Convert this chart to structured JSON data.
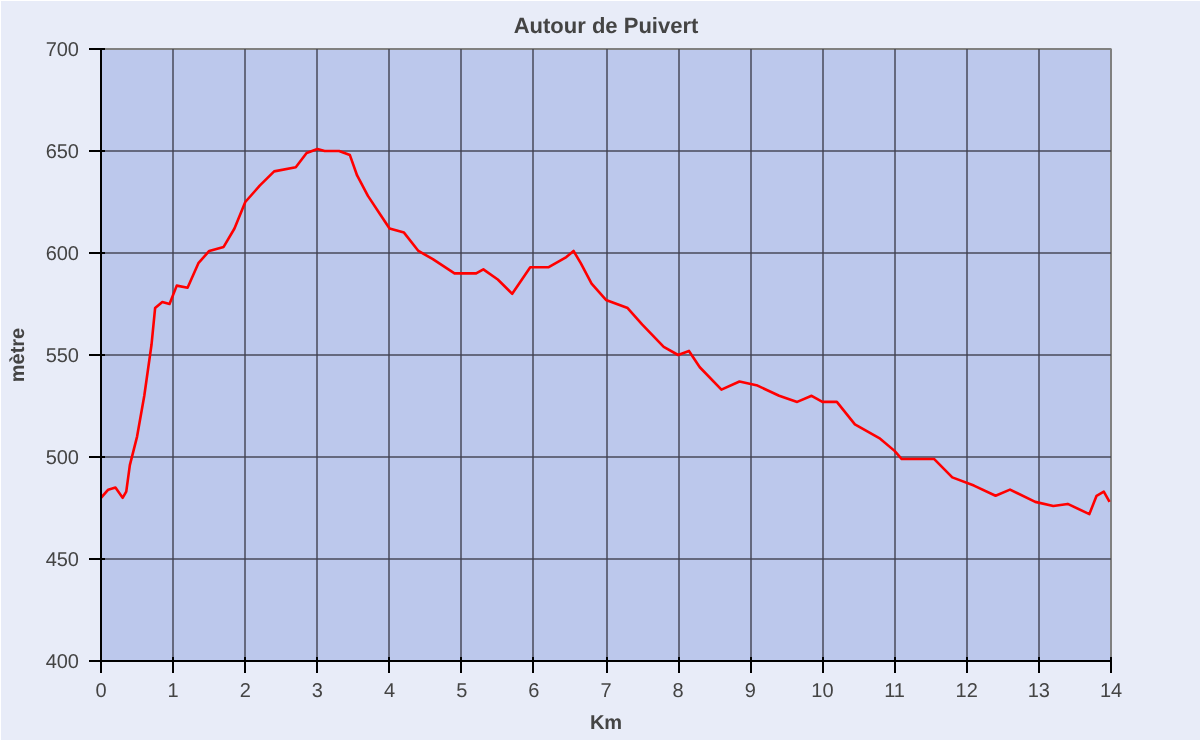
{
  "chart_data": {
    "type": "line",
    "title": "Autour de Puivert",
    "xlabel": "Km",
    "ylabel": "mètre",
    "series": [
      {
        "color": "#ff0000",
        "x": [
          0,
          0.1,
          0.2,
          0.3,
          0.35,
          0.4,
          0.5,
          0.6,
          0.7,
          0.75,
          0.85,
          0.95,
          1.05,
          1.2,
          1.35,
          1.5,
          1.7,
          1.85,
          2.0,
          2.2,
          2.4,
          2.7,
          2.85,
          3.0,
          3.1,
          3.3,
          3.45,
          3.55,
          3.7,
          3.85,
          4.0,
          4.2,
          4.4,
          4.6,
          4.9,
          5.2,
          5.3,
          5.5,
          5.7,
          5.95,
          6.2,
          6.45,
          6.55,
          6.65,
          6.8,
          7.0,
          7.3,
          7.5,
          7.8,
          8.0,
          8.15,
          8.3,
          8.6,
          8.85,
          9.1,
          9.4,
          9.65,
          9.85,
          10.0,
          10.2,
          10.45,
          10.8,
          11.0,
          11.1,
          11.55,
          11.8,
          12.1,
          12.4,
          12.6,
          12.95,
          13.2,
          13.4,
          13.7,
          13.8,
          13.9,
          13.98
        ],
        "values": [
          480,
          484,
          485,
          480,
          483,
          496,
          510,
          530,
          555,
          573,
          576,
          575,
          584,
          583,
          595,
          601,
          603,
          612,
          625,
          633,
          640,
          642,
          649,
          651,
          650,
          650,
          648,
          638,
          628,
          620,
          612,
          610,
          601,
          597,
          590,
          590,
          592,
          587,
          580,
          593,
          593,
          598,
          601,
          595,
          585,
          577,
          573,
          565,
          554,
          550,
          552,
          544,
          533,
          537,
          535,
          530,
          527,
          530,
          527,
          527,
          516,
          509,
          503,
          499,
          499,
          490,
          486,
          481,
          484,
          478,
          476,
          477,
          472,
          481,
          483,
          478
        ]
      }
    ],
    "xlim": [
      0,
      14
    ],
    "xticks": [
      0,
      1,
      2,
      3,
      4,
      5,
      6,
      7,
      8,
      9,
      10,
      11,
      12,
      13,
      14
    ],
    "ylim": [
      400,
      700
    ],
    "yticks": [
      400,
      450,
      500,
      550,
      600,
      650,
      700
    ],
    "grid": true,
    "marker": "none",
    "line_style": "solid"
  }
}
